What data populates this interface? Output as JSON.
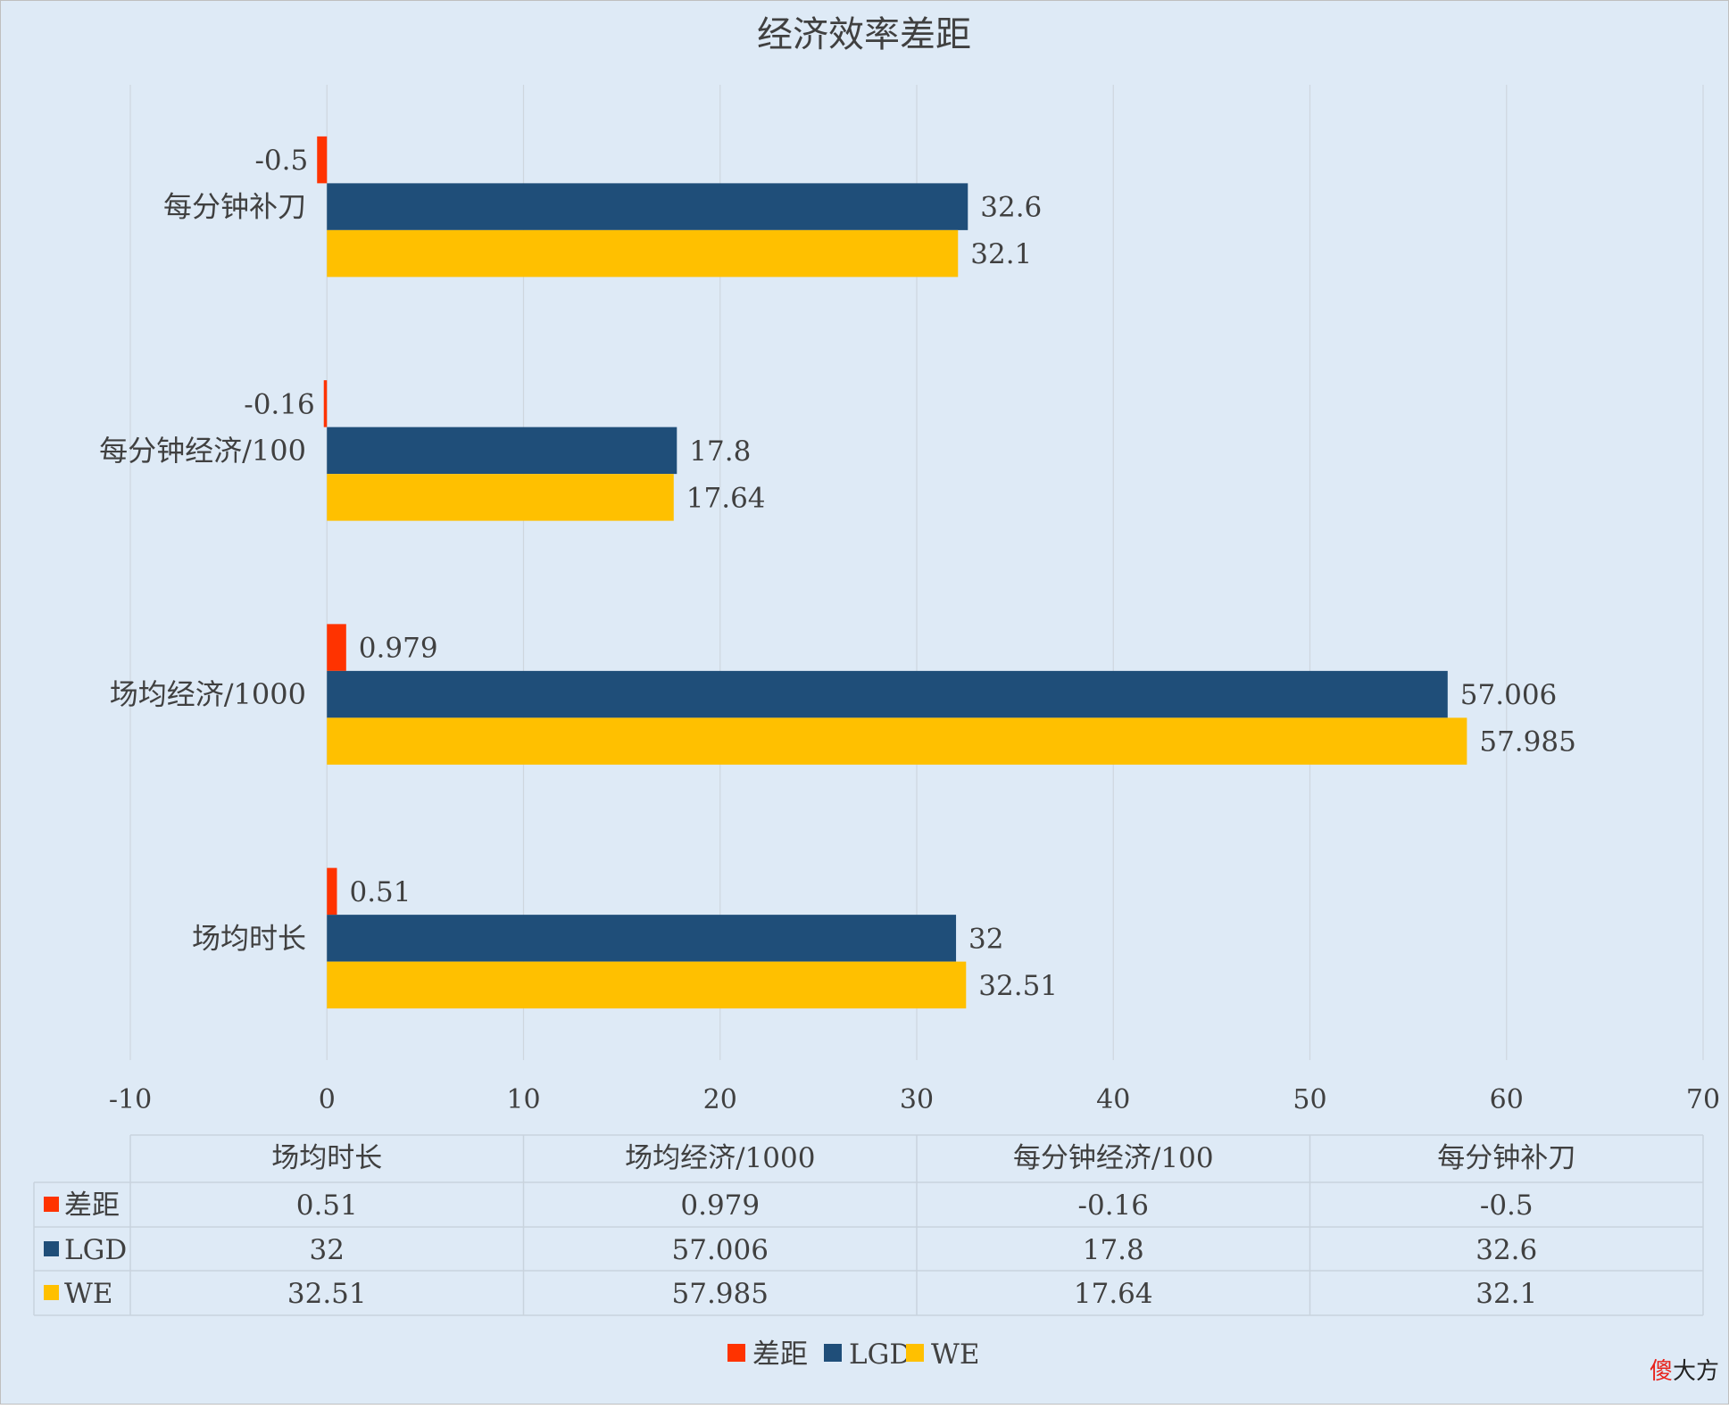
{
  "chart_data": {
    "type": "bar",
    "orientation": "horizontal",
    "title": "经济效率差距",
    "categories": [
      "场均时长",
      "场均经济/1000",
      "每分钟经济/100",
      "每分钟补刀"
    ],
    "series": [
      {
        "name": "差距",
        "color": "#ff3300",
        "values": [
          0.51,
          0.979,
          -0.16,
          -0.5
        ],
        "labels": [
          "0.51",
          "0.979",
          "-0.16",
          "-0.5"
        ]
      },
      {
        "name": "LGD",
        "color": "#1f4e79",
        "values": [
          32,
          57.006,
          17.8,
          32.6
        ],
        "labels": [
          "32",
          "57.006",
          "17.8",
          "32.6"
        ]
      },
      {
        "name": "WE",
        "color": "#ffc000",
        "values": [
          32.51,
          57.985,
          17.64,
          32.1
        ],
        "labels": [
          "32.51",
          "57.985",
          "17.64",
          "32.1"
        ]
      }
    ],
    "xlim": [
      -10,
      70
    ],
    "xticks": [
      "-10",
      "0",
      "10",
      "20",
      "30",
      "40",
      "50",
      "60",
      "70"
    ],
    "grid": true,
    "data_table": true,
    "legend_position": "bottom",
    "background_color": "#deeaf6"
  },
  "watermark": {
    "part1": "傻",
    "part2": "大方"
  }
}
